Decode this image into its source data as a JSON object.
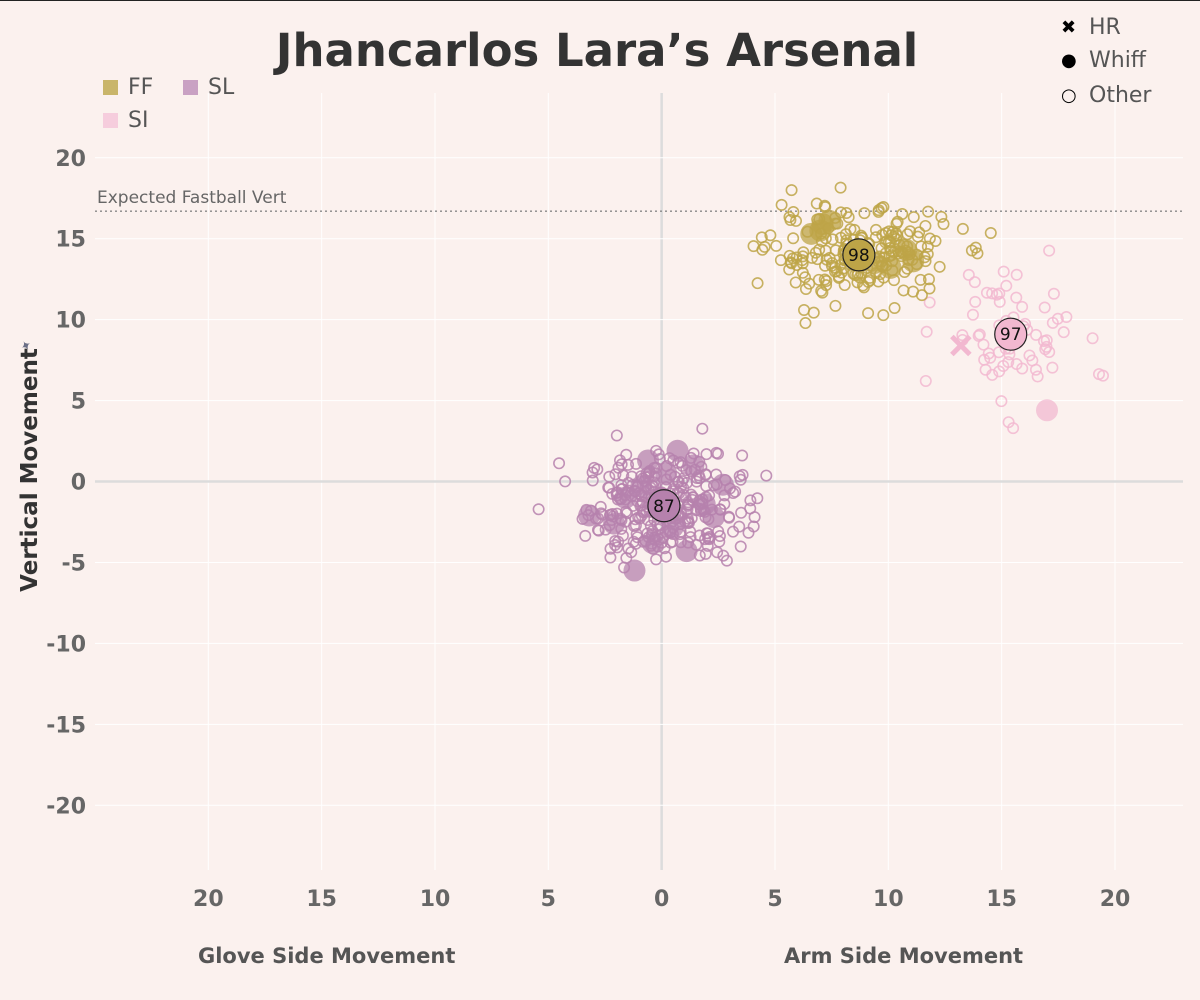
{
  "chart_data": {
    "type": "scatter",
    "title": "Jhancarlos Lara’s Arsenal",
    "ylabel": "Vertical Movement",
    "xlabels": {
      "glove_side": "Glove Side Movement",
      "arm_side": "Arm Side Movement"
    },
    "xlim": [
      -25,
      23
    ],
    "ylim": [
      -24,
      24
    ],
    "x_ticks": [
      -20,
      -15,
      -10,
      -5,
      0,
      5,
      10,
      15,
      20
    ],
    "x_tick_labels": [
      "20",
      "15",
      "10",
      "5",
      "0",
      "5",
      "10",
      "15",
      "20"
    ],
    "y_ticks": [
      20,
      15,
      10,
      5,
      0,
      -5,
      -10,
      -15,
      -20
    ],
    "y_tick_labels": [
      "20",
      "15",
      "10",
      "5",
      "0",
      "-5",
      "-10",
      "-15",
      "-20"
    ],
    "reference_line": {
      "label": "Expected Fastball Vert",
      "y": 16.7
    },
    "legend_pitch_types": [
      {
        "code": "FF",
        "color": "#c9b56a"
      },
      {
        "code": "SL",
        "color": "#c9a1c3"
      },
      {
        "code": "SI",
        "color": "#f6cddd"
      }
    ],
    "legend_outcomes": [
      {
        "label": "HR",
        "shape": "x"
      },
      {
        "label": "Whiff",
        "shape": "filled-circle"
      },
      {
        "label": "Other",
        "shape": "open-circle"
      }
    ],
    "series": [
      {
        "name": "FF",
        "color": "#bda447",
        "avg_velocity": "98",
        "center": [
          8.7,
          14.0
        ],
        "spread": [
          2.0,
          1.4
        ],
        "count": 230,
        "whiffs": [
          [
            7.1,
            15.9
          ],
          [
            7.4,
            16.1
          ],
          [
            7.0,
            15.5
          ],
          [
            9.4,
            13.5
          ],
          [
            10.8,
            14.3
          ],
          [
            11.1,
            13.6
          ],
          [
            6.6,
            15.3
          ],
          [
            10.1,
            13.2
          ]
        ],
        "home_runs": []
      },
      {
        "name": "SI",
        "color": "#f2b8d0",
        "avg_velocity": "97",
        "center": [
          15.4,
          9.1
        ],
        "spread": [
          1.5,
          2.2
        ],
        "count": 70,
        "whiffs": [
          [
            17.0,
            4.4
          ]
        ],
        "home_runs": [
          [
            13.2,
            8.4
          ]
        ]
      },
      {
        "name": "SL",
        "color": "#b681ad",
        "avg_velocity": "87",
        "center": [
          0.1,
          -1.5
        ],
        "spread": [
          1.7,
          1.6
        ],
        "count": 330,
        "whiffs": [
          [
            0.7,
            1.9
          ],
          [
            -0.6,
            1.3
          ],
          [
            -3.2,
            -2.1
          ],
          [
            -1.2,
            -5.5
          ],
          [
            1.1,
            -4.3
          ],
          [
            2.7,
            -0.2
          ],
          [
            -1.6,
            -1.0
          ],
          [
            1.9,
            -1.4
          ],
          [
            0.5,
            -2.8
          ],
          [
            -0.9,
            -0.3
          ],
          [
            1.4,
            1.0
          ],
          [
            -2.1,
            -2.6
          ],
          [
            0.2,
            0.5
          ],
          [
            2.3,
            -2.2
          ],
          [
            -0.4,
            -3.8
          ]
        ],
        "home_runs": []
      }
    ]
  }
}
